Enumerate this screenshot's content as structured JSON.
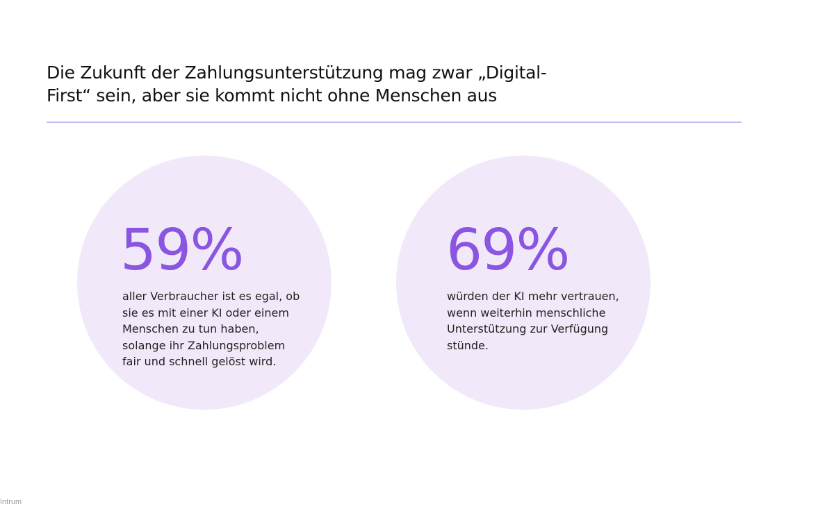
{
  "title": {
    "lines": [
      "Die Zukunft der Zahlungsunterstützung mag zwar „Digital-",
      "First“ sein, aber sie kommt nicht ohne Menschen aus"
    ]
  },
  "colors": {
    "accent": "#8a55e0",
    "circle": "#f1e9f9",
    "divider": "#c9b6f0"
  },
  "stats": [
    {
      "value": "59%",
      "lines": [
        "aller Verbraucher ist es egal, ob",
        "sie es mit einer KI oder einem",
        "Menschen zu tun haben,",
        "solange ihr Zahlungsproblem",
        "fair und schnell gelöst wird."
      ]
    },
    {
      "value": "69%",
      "lines": [
        "würden der KI mehr vertrauen,",
        "wenn weiterhin menschliche",
        "Unterstützung zur Verfügung",
        "stünde."
      ]
    }
  ],
  "footer": {
    "brand": "Intrum"
  }
}
